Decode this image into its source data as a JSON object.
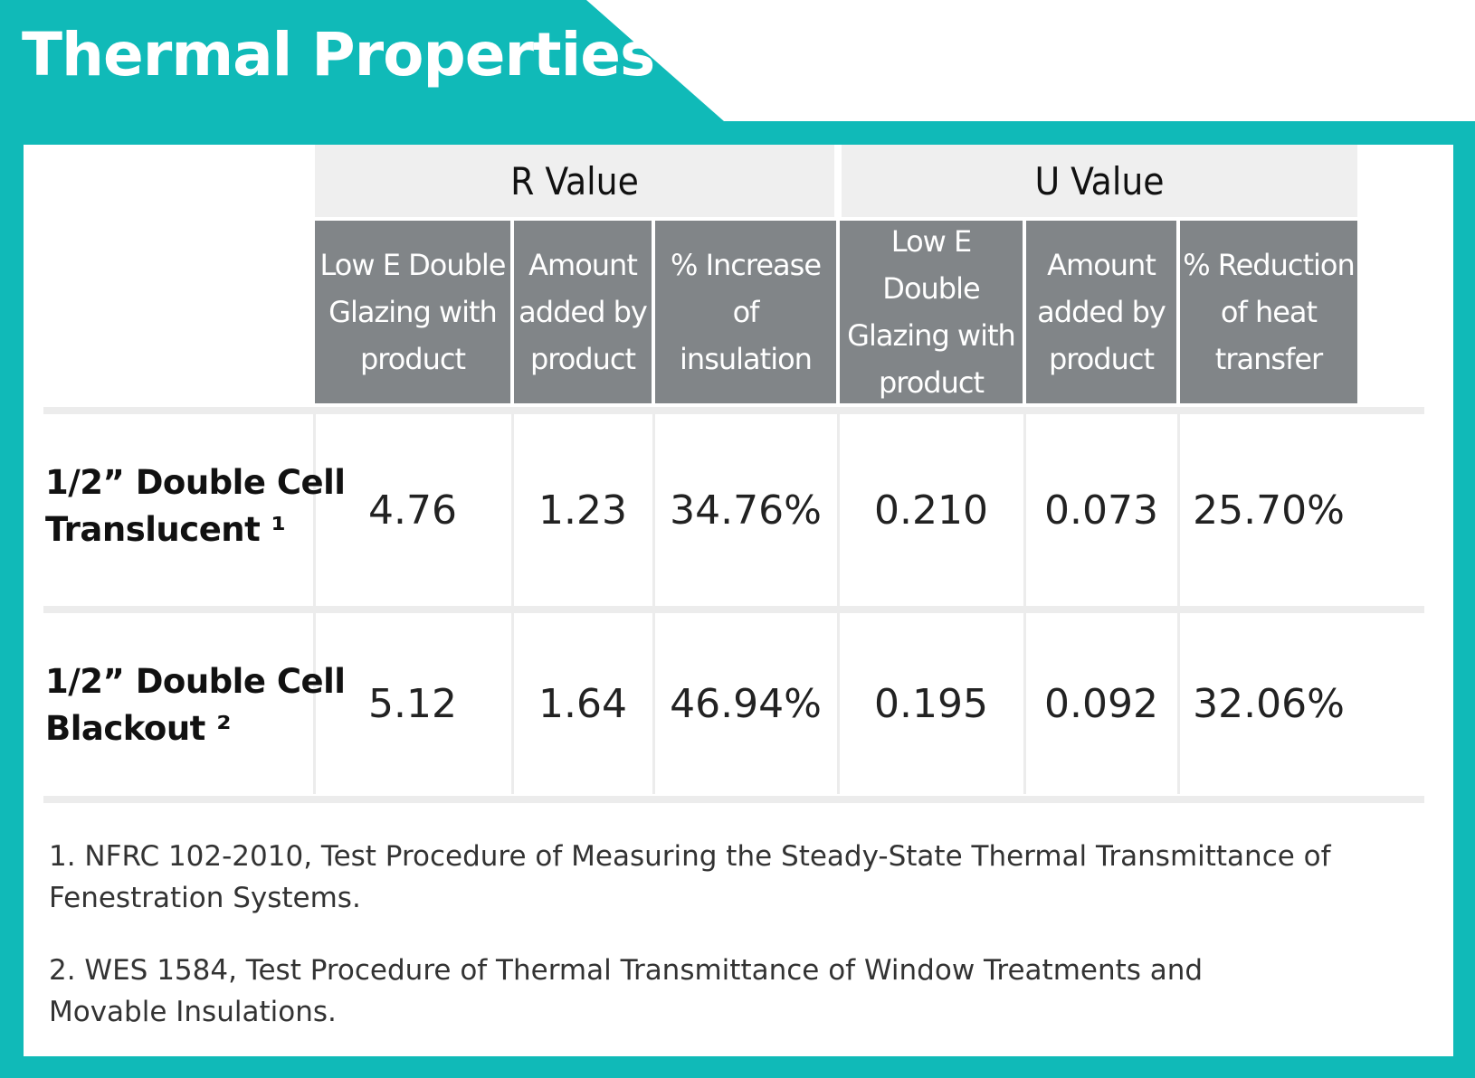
{
  "title": "Thermal Properties",
  "table": {
    "groups": [
      "R Value",
      "U Value"
    ],
    "columns": [
      "Low E Double\nGlazing with\nproduct",
      "Amount\nadded by\nproduct",
      "% Increase of\ninsulation",
      "Low E Double\nGlazing with\nproduct",
      "Amount\nadded by\nproduct",
      "% Reduction\nof heat\ntransfer"
    ],
    "rows": [
      {
        "label": "1/2” Double Cell\nTranslucent ¹",
        "values": [
          "4.76",
          "1.23",
          "34.76%",
          "0.210",
          "0.073",
          "25.70%"
        ]
      },
      {
        "label": "1/2” Double Cell\nBlackout ²",
        "values": [
          "5.12",
          "1.64",
          "46.94%",
          "0.195",
          "0.092",
          "32.06%"
        ]
      }
    ]
  },
  "footnotes": [
    "1. NFRC 102-2010, Test Procedure of Measuring the Steady-State Thermal Transmittance of\n    Fenestration Systems.",
    "2. WES 1584, Test Procedure of Thermal Transmittance of Window Treatments and\n    Movable Insulations."
  ],
  "colors": {
    "accent": "#10bab8",
    "header_gray": "#818588",
    "group_header_bg": "#efefef"
  }
}
